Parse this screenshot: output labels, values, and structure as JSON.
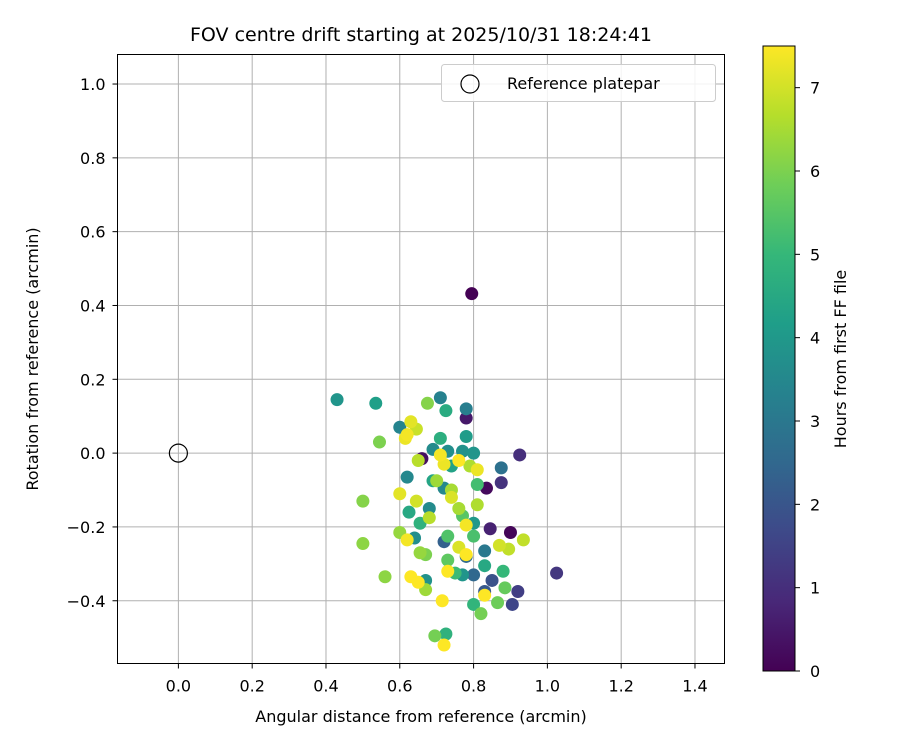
{
  "chart_data": {
    "type": "scatter",
    "title": "FOV centre drift starting at 2025/10/31 18:24:41",
    "xlabel": "Angular distance from reference (arcmin)",
    "ylabel": "Rotation from reference (arcmin)",
    "xlim": [
      -0.165,
      1.48
    ],
    "ylim": [
      -0.57,
      1.08
    ],
    "xticks": [
      0.0,
      0.2,
      0.4,
      0.6,
      0.8,
      1.0,
      1.2,
      1.4
    ],
    "xtick_labels": [
      "0.0",
      "0.2",
      "0.4",
      "0.6",
      "0.8",
      "1.0",
      "1.2",
      "1.4"
    ],
    "yticks": [
      -0.4,
      -0.2,
      0.0,
      0.2,
      0.4,
      0.6,
      0.8,
      1.0
    ],
    "ytick_labels": [
      "−0.4",
      "−0.2",
      "0.0",
      "0.2",
      "0.4",
      "0.6",
      "0.8",
      "1.0"
    ],
    "grid": true,
    "legend": {
      "position": "top-right",
      "entries": [
        {
          "label": "Reference platepar",
          "marker": "open-circle"
        }
      ]
    },
    "reference": {
      "x": 0.0,
      "y": 0.0,
      "label": "Reference platepar"
    },
    "colorbar": {
      "label": "Hours from first FF file",
      "colormap": "viridis",
      "range": [
        0,
        7.5
      ],
      "ticks": [
        0,
        1,
        2,
        3,
        4,
        5,
        6,
        7
      ],
      "tick_labels": [
        "0",
        "1",
        "2",
        "3",
        "4",
        "5",
        "6",
        "7"
      ],
      "colors": [
        "#440154",
        "#482878",
        "#3e4989",
        "#31688e",
        "#26828e",
        "#1f9e89",
        "#35b779",
        "#6ece58",
        "#b5de2b",
        "#fde725"
      ]
    },
    "points": [
      {
        "x": 0.795,
        "y": 0.432,
        "hours": 0.0
      },
      {
        "x": 0.9,
        "y": -0.215,
        "hours": 0.1
      },
      {
        "x": 0.835,
        "y": -0.095,
        "hours": 0.2
      },
      {
        "x": 0.66,
        "y": -0.015,
        "hours": 0.3
      },
      {
        "x": 0.78,
        "y": 0.095,
        "hours": 0.5
      },
      {
        "x": 0.845,
        "y": -0.205,
        "hours": 0.7
      },
      {
        "x": 0.925,
        "y": -0.005,
        "hours": 1.0
      },
      {
        "x": 0.875,
        "y": -0.08,
        "hours": 1.1
      },
      {
        "x": 1.025,
        "y": -0.325,
        "hours": 1.2
      },
      {
        "x": 0.92,
        "y": -0.375,
        "hours": 1.4
      },
      {
        "x": 0.905,
        "y": -0.41,
        "hours": 1.6
      },
      {
        "x": 0.85,
        "y": -0.345,
        "hours": 1.9
      },
      {
        "x": 0.83,
        "y": -0.375,
        "hours": 2.1
      },
      {
        "x": 0.72,
        "y": -0.24,
        "hours": 2.3
      },
      {
        "x": 0.8,
        "y": -0.33,
        "hours": 2.5
      },
      {
        "x": 0.78,
        "y": -0.28,
        "hours": 2.6
      },
      {
        "x": 0.875,
        "y": -0.04,
        "hours": 2.8
      },
      {
        "x": 0.83,
        "y": -0.265,
        "hours": 3.0
      },
      {
        "x": 0.78,
        "y": 0.12,
        "hours": 3.2
      },
      {
        "x": 0.71,
        "y": 0.15,
        "hours": 3.3
      },
      {
        "x": 0.6,
        "y": 0.07,
        "hours": 3.4
      },
      {
        "x": 0.62,
        "y": -0.065,
        "hours": 3.5
      },
      {
        "x": 0.69,
        "y": 0.01,
        "hours": 3.6
      },
      {
        "x": 0.73,
        "y": 0.005,
        "hours": 3.7
      },
      {
        "x": 0.77,
        "y": 0.005,
        "hours": 3.8
      },
      {
        "x": 0.8,
        "y": 0.0,
        "hours": 3.9
      },
      {
        "x": 0.72,
        "y": -0.095,
        "hours": 3.5
      },
      {
        "x": 0.68,
        "y": -0.15,
        "hours": 3.6
      },
      {
        "x": 0.64,
        "y": -0.23,
        "hours": 3.7
      },
      {
        "x": 0.67,
        "y": -0.345,
        "hours": 3.8
      },
      {
        "x": 0.43,
        "y": 0.145,
        "hours": 3.9
      },
      {
        "x": 0.77,
        "y": -0.33,
        "hours": 3.9
      },
      {
        "x": 0.8,
        "y": -0.19,
        "hours": 4.0
      },
      {
        "x": 0.78,
        "y": 0.045,
        "hours": 4.1
      },
      {
        "x": 0.535,
        "y": 0.135,
        "hours": 4.2
      },
      {
        "x": 0.74,
        "y": -0.035,
        "hours": 4.3
      },
      {
        "x": 0.69,
        "y": -0.075,
        "hours": 4.4
      },
      {
        "x": 0.625,
        "y": -0.16,
        "hours": 4.5
      },
      {
        "x": 0.83,
        "y": -0.305,
        "hours": 4.5
      },
      {
        "x": 0.725,
        "y": 0.115,
        "hours": 4.6
      },
      {
        "x": 0.71,
        "y": 0.04,
        "hours": 4.7
      },
      {
        "x": 0.655,
        "y": -0.19,
        "hours": 4.8
      },
      {
        "x": 0.725,
        "y": -0.49,
        "hours": 4.8
      },
      {
        "x": 0.8,
        "y": -0.41,
        "hours": 4.9
      },
      {
        "x": 0.88,
        "y": -0.32,
        "hours": 5.0
      },
      {
        "x": 0.75,
        "y": -0.325,
        "hours": 5.1
      },
      {
        "x": 0.81,
        "y": -0.085,
        "hours": 5.2
      },
      {
        "x": 0.8,
        "y": -0.225,
        "hours": 5.3
      },
      {
        "x": 0.73,
        "y": -0.225,
        "hours": 5.4
      },
      {
        "x": 0.77,
        "y": -0.17,
        "hours": 5.5
      },
      {
        "x": 0.73,
        "y": -0.29,
        "hours": 5.6
      },
      {
        "x": 0.885,
        "y": -0.365,
        "hours": 5.7
      },
      {
        "x": 0.865,
        "y": -0.405,
        "hours": 5.8
      },
      {
        "x": 0.82,
        "y": -0.435,
        "hours": 5.9
      },
      {
        "x": 0.695,
        "y": -0.495,
        "hours": 5.9
      },
      {
        "x": 0.67,
        "y": -0.275,
        "hours": 6.0
      },
      {
        "x": 0.545,
        "y": 0.03,
        "hours": 6.0
      },
      {
        "x": 0.675,
        "y": 0.135,
        "hours": 6.1
      },
      {
        "x": 0.5,
        "y": -0.13,
        "hours": 6.1
      },
      {
        "x": 0.5,
        "y": -0.245,
        "hours": 6.2
      },
      {
        "x": 0.56,
        "y": -0.335,
        "hours": 6.2
      },
      {
        "x": 0.6,
        "y": -0.215,
        "hours": 6.3
      },
      {
        "x": 0.655,
        "y": -0.27,
        "hours": 6.3
      },
      {
        "x": 0.67,
        "y": -0.37,
        "hours": 6.4
      },
      {
        "x": 0.7,
        "y": -0.075,
        "hours": 6.4
      },
      {
        "x": 0.74,
        "y": -0.1,
        "hours": 6.5
      },
      {
        "x": 0.76,
        "y": -0.15,
        "hours": 6.5
      },
      {
        "x": 0.79,
        "y": -0.035,
        "hours": 6.6
      },
      {
        "x": 0.81,
        "y": -0.14,
        "hours": 6.6
      },
      {
        "x": 0.65,
        "y": -0.02,
        "hours": 6.7
      },
      {
        "x": 0.68,
        "y": -0.175,
        "hours": 6.7
      },
      {
        "x": 0.935,
        "y": -0.235,
        "hours": 6.8
      },
      {
        "x": 0.895,
        "y": -0.26,
        "hours": 6.8
      },
      {
        "x": 0.645,
        "y": 0.065,
        "hours": 6.9
      },
      {
        "x": 0.87,
        "y": -0.25,
        "hours": 7.0
      },
      {
        "x": 0.645,
        "y": -0.13,
        "hours": 7.0
      },
      {
        "x": 0.74,
        "y": -0.12,
        "hours": 7.1
      },
      {
        "x": 0.76,
        "y": -0.255,
        "hours": 7.1
      },
      {
        "x": 0.6,
        "y": -0.11,
        "hours": 7.2
      },
      {
        "x": 0.63,
        "y": 0.085,
        "hours": 7.2
      },
      {
        "x": 0.72,
        "y": -0.03,
        "hours": 7.3
      },
      {
        "x": 0.81,
        "y": -0.045,
        "hours": 7.3
      },
      {
        "x": 0.615,
        "y": 0.04,
        "hours": 7.3
      },
      {
        "x": 0.62,
        "y": 0.05,
        "hours": 7.4
      },
      {
        "x": 0.71,
        "y": -0.005,
        "hours": 7.4
      },
      {
        "x": 0.78,
        "y": -0.195,
        "hours": 7.4
      },
      {
        "x": 0.62,
        "y": -0.235,
        "hours": 7.4
      },
      {
        "x": 0.78,
        "y": -0.275,
        "hours": 7.5
      },
      {
        "x": 0.63,
        "y": -0.335,
        "hours": 7.5
      },
      {
        "x": 0.65,
        "y": -0.35,
        "hours": 7.5
      },
      {
        "x": 0.73,
        "y": -0.32,
        "hours": 7.5
      },
      {
        "x": 0.715,
        "y": -0.4,
        "hours": 7.5
      },
      {
        "x": 0.72,
        "y": -0.52,
        "hours": 7.5
      },
      {
        "x": 0.83,
        "y": -0.385,
        "hours": 7.5
      },
      {
        "x": 0.76,
        "y": -0.02,
        "hours": 7.5
      }
    ]
  }
}
